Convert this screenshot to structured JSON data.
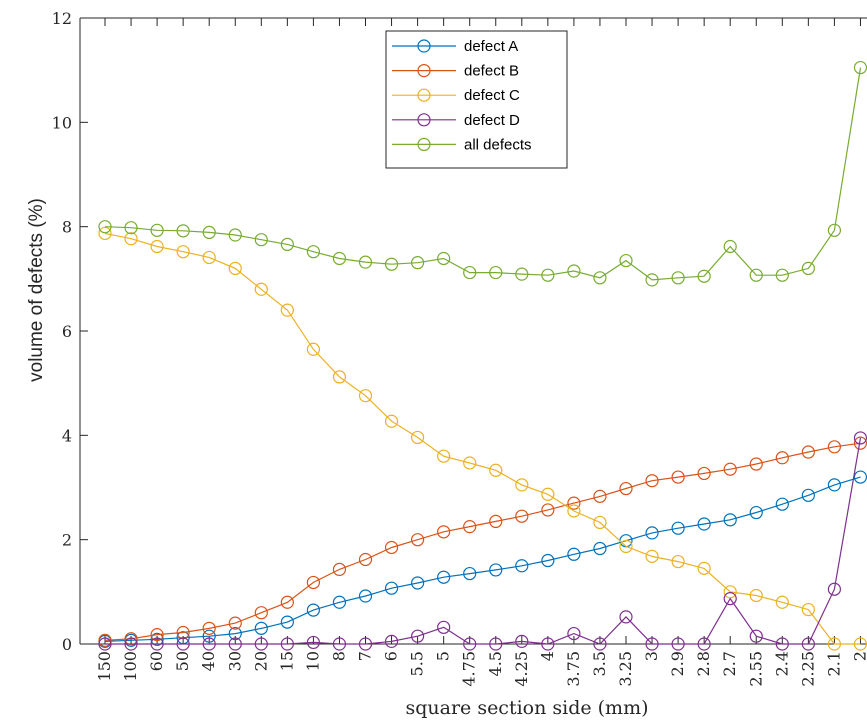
{
  "chart_data": {
    "type": "line",
    "title": "",
    "xlabel": "square section side (mm)",
    "ylabel": "volume of defects (%)",
    "ylim": [
      0,
      12
    ],
    "yticks": [
      0,
      2,
      4,
      6,
      8,
      10,
      12
    ],
    "grid": false,
    "legend_position": "top-center",
    "categories": [
      "150",
      "100",
      "60",
      "50",
      "40",
      "30",
      "20",
      "15",
      "10",
      "8",
      "7",
      "6",
      "5.5",
      "5",
      "4.75",
      "4.5",
      "4.25",
      "4",
      "3.75",
      "3.5",
      "3.25",
      "3",
      "2.9",
      "2.8",
      "2.7",
      "2.55",
      "2.4",
      "2.25",
      "2.1",
      "2"
    ],
    "series": [
      {
        "name": "defect A",
        "color": "#0072BD",
        "values": [
          0.05,
          0.07,
          0.09,
          0.12,
          0.15,
          0.2,
          0.3,
          0.42,
          0.65,
          0.8,
          0.92,
          1.07,
          1.17,
          1.28,
          1.35,
          1.42,
          1.5,
          1.6,
          1.72,
          1.83,
          1.98,
          2.13,
          2.22,
          2.3,
          2.38,
          2.52,
          2.68,
          2.85,
          3.05,
          3.2
        ]
      },
      {
        "name": "defect B",
        "color": "#D95319",
        "values": [
          0.07,
          0.1,
          0.18,
          0.22,
          0.3,
          0.4,
          0.6,
          0.8,
          1.18,
          1.43,
          1.62,
          1.85,
          2.0,
          2.15,
          2.25,
          2.35,
          2.45,
          2.57,
          2.7,
          2.83,
          2.98,
          3.13,
          3.2,
          3.27,
          3.35,
          3.45,
          3.57,
          3.68,
          3.78,
          3.85
        ]
      },
      {
        "name": "defect C",
        "color": "#EDB120",
        "values": [
          7.87,
          7.77,
          7.62,
          7.52,
          7.41,
          7.2,
          6.8,
          6.4,
          5.65,
          5.12,
          4.76,
          4.27,
          3.96,
          3.6,
          3.47,
          3.33,
          3.05,
          2.87,
          2.55,
          2.33,
          1.87,
          1.68,
          1.58,
          1.45,
          1.0,
          0.93,
          0.8,
          0.66,
          0.0,
          0.0
        ]
      },
      {
        "name": "defect D",
        "color": "#7E2F8E",
        "values": [
          0.0,
          0.0,
          0.0,
          0.0,
          0.0,
          0.0,
          0.0,
          0.0,
          0.03,
          0.0,
          0.0,
          0.05,
          0.15,
          0.32,
          0.0,
          0.0,
          0.05,
          0.0,
          0.2,
          0.0,
          0.52,
          0.0,
          0.0,
          0.0,
          0.87,
          0.15,
          0.0,
          0.0,
          1.05,
          3.95
        ]
      },
      {
        "name": "all defects",
        "color": "#77AC30",
        "values": [
          8.0,
          7.98,
          7.93,
          7.92,
          7.89,
          7.84,
          7.75,
          7.66,
          7.52,
          7.39,
          7.32,
          7.28,
          7.31,
          7.39,
          7.12,
          7.12,
          7.09,
          7.07,
          7.15,
          7.02,
          7.35,
          6.98,
          7.02,
          7.05,
          7.62,
          7.07,
          7.07,
          7.2,
          7.93,
          11.05
        ]
      }
    ]
  }
}
